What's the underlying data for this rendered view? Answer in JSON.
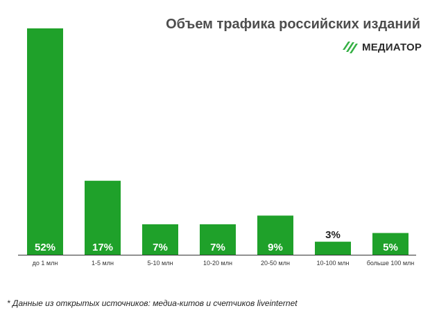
{
  "title": "Объем трафика российских изданий",
  "logo": {
    "text": "МЕДИАТОР",
    "icon": "stripes-icon"
  },
  "footnote": "* Данные из открытых источников: медиа-китов и счетчиков liveinternet",
  "colors": {
    "bar": "#1fa12a",
    "logo_green": "#35b044",
    "label_inside": "#ffffff",
    "label_outside": "#222222",
    "axis": "#333333"
  },
  "chart_data": {
    "type": "bar",
    "title": "Объем трафика российских изданий",
    "xlabel": "",
    "ylabel": "",
    "ylim": [
      0,
      52
    ],
    "grid": false,
    "categories": [
      "до 1 млн",
      "1-5 млн",
      "5-10 млн",
      "10-20 млн",
      "20-50 млн",
      "10-100 млн",
      "больше 100 млн"
    ],
    "values": [
      52,
      17,
      7,
      7,
      9,
      3,
      5
    ],
    "labels": [
      "52%",
      "17%",
      "7%",
      "7%",
      "9%",
      "3%",
      "5%"
    ]
  }
}
